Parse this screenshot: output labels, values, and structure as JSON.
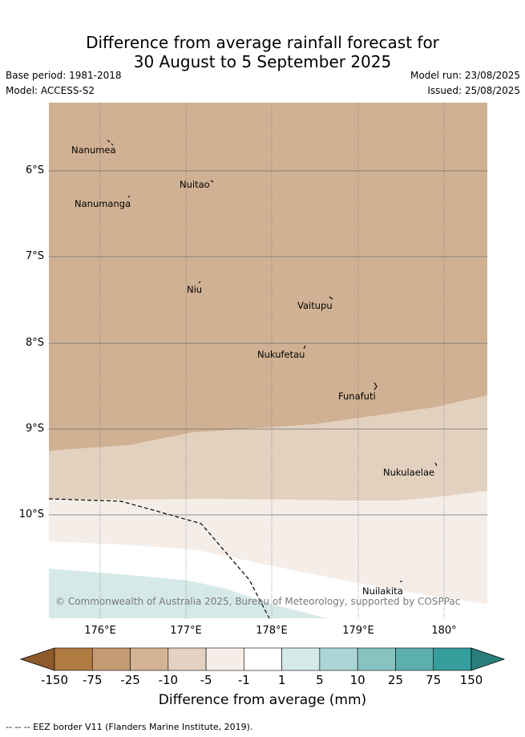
{
  "title_line1": "Difference from average rainfall forecast for",
  "title_line2": "30 August to 5 September 2025",
  "base_period": "Base period: 1981-2018",
  "model": "Model: ACCESS-S2",
  "model_run": "Model run: 23/08/2025",
  "issued": "Issued: 25/08/2025",
  "y_ticks": [
    "6°S",
    "7°S",
    "8°S",
    "9°S",
    "10°S"
  ],
  "x_ticks": [
    "176°E",
    "177°E",
    "178°E",
    "179°E",
    "180°"
  ],
  "islands": [
    "Nanumea",
    "Nuitao",
    "Nanumanga",
    "Niu",
    "Vaitupu",
    "Nukufetau",
    "Funafuti",
    "Nukulaelae",
    "Nuilakita"
  ],
  "copyright": "© Commonwealth of Australia 2025, Bureau of Meteorology, supported by COSPPac",
  "colorbar": {
    "labels": [
      "-150",
      "-75",
      "-25",
      "-10",
      "-5",
      "-1",
      "1",
      "5",
      "10",
      "25",
      "75",
      "150"
    ],
    "colors": [
      "#8c5a2b",
      "#b07a43",
      "#c39a71",
      "#d3b394",
      "#e3d2c1",
      "#f5ede8",
      "#ffffff",
      "#d5eae9",
      "#acd6d5",
      "#86c3c1",
      "#5cb0ae",
      "#359e9c",
      "#2a7f7d"
    ],
    "title": "Difference from average (mm)"
  },
  "footer": "--  --  -- EEZ border V11 (Flanders Marine Institute, 2019).",
  "legend_colors": {
    "dry_-25": "#d1b193",
    "dry_-10": "#e3d1c0",
    "dry_-5": "#f5ede8",
    "neutral": "#ffffff",
    "wet_5": "#d5e9e8"
  }
}
